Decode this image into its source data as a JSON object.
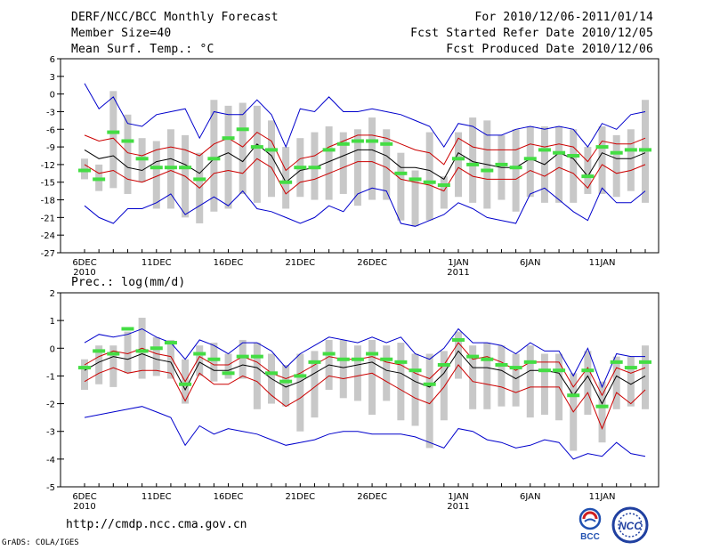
{
  "header": {
    "title": "DERF/NCC/BCC Monthly Forecast",
    "member_size": "Member Size=40",
    "variable": "Mean Surf. Temp.: °C",
    "period": "For 2010/12/06-2011/01/14",
    "refer_date": "Fcst Started Refer Date 2010/12/05",
    "produced_date": "Fcst Produced Date 2010/12/06"
  },
  "footer": {
    "url": "http://cmdp.ncc.cma.gov.cn",
    "grads": "GrADS: COLA/IGES",
    "logo_bcc": "BCC",
    "logo_ncc": "NCC"
  },
  "colors": {
    "envelope": "#0000cc",
    "spread": "#cc0000",
    "mean": "#000000",
    "box": "#c8c8c8",
    "marker": "#44dd44"
  },
  "chart_data": [
    {
      "type": "line",
      "title": "Mean Surf. Temp.: °C",
      "ylim": [
        -27,
        6
      ],
      "yticks": [
        6,
        3,
        0,
        -3,
        -6,
        -9,
        -12,
        -15,
        -18,
        -21,
        -24,
        -27
      ],
      "x_count": 40,
      "xticks": [
        {
          "i": 0,
          "label": "6DEC",
          "sub": "2010"
        },
        {
          "i": 5,
          "label": "11DEC"
        },
        {
          "i": 10,
          "label": "16DEC"
        },
        {
          "i": 15,
          "label": "21DEC"
        },
        {
          "i": 20,
          "label": "26DEC"
        },
        {
          "i": 26,
          "label": "1JAN",
          "sub": "2011"
        },
        {
          "i": 31,
          "label": "6JAN"
        },
        {
          "i": 36,
          "label": "11JAN"
        }
      ],
      "max": [
        1.8,
        -2.5,
        -0.5,
        -5,
        -5.5,
        -3.5,
        -3,
        -2.5,
        -7.5,
        -3,
        -3.5,
        -3.5,
        -1,
        -3.5,
        -9,
        -2.5,
        -3,
        -0.5,
        -3,
        -3,
        -2.5,
        -3,
        -3.5,
        -4.5,
        -5.5,
        -9,
        -5,
        -5.5,
        -7,
        -7,
        -6,
        -5.5,
        -6,
        -5.5,
        -6,
        -9,
        -5,
        -6,
        -3.5,
        -3
      ],
      "upper": [
        -7,
        -8,
        -7.5,
        -10,
        -10.5,
        -9.5,
        -9,
        -9.5,
        -10.5,
        -8.5,
        -7.5,
        -9,
        -6.5,
        -8,
        -13,
        -11,
        -10.5,
        -9,
        -8,
        -7,
        -7,
        -7.5,
        -8.5,
        -9.5,
        -10,
        -12,
        -7.5,
        -9,
        -9.5,
        -9.5,
        -9.5,
        -8.5,
        -9,
        -8.5,
        -9,
        -11.5,
        -8,
        -8.5,
        -8.5,
        -7.5
      ],
      "mean": [
        -9.5,
        -11,
        -10.5,
        -12.5,
        -13,
        -11.5,
        -11,
        -12,
        -13.5,
        -11,
        -10,
        -11.5,
        -8.5,
        -10.5,
        -15,
        -13,
        -12.5,
        -11.5,
        -10.5,
        -9.5,
        -9.5,
        -10.5,
        -12.5,
        -12.5,
        -13,
        -14.5,
        -10,
        -11.5,
        -12,
        -12.5,
        -12.5,
        -11,
        -12,
        -10,
        -11,
        -14,
        -10,
        -11,
        -11,
        -10
      ],
      "lower": [
        -12,
        -13.5,
        -13,
        -14.5,
        -15,
        -14,
        -13,
        -14,
        -16,
        -13.5,
        -13,
        -13.5,
        -11,
        -12.5,
        -17,
        -15,
        -14.5,
        -13.5,
        -12.5,
        -11.5,
        -11.5,
        -12.5,
        -14.5,
        -15,
        -15.5,
        -16.5,
        -12.5,
        -14,
        -14.5,
        -14.5,
        -14.5,
        -13,
        -14,
        -12.5,
        -13.5,
        -16,
        -12,
        -13.5,
        -13,
        -12
      ],
      "min": [
        -19,
        -21,
        -22,
        -19.5,
        -19.5,
        -18.5,
        -17,
        -20.5,
        -19,
        -17.5,
        -19,
        -16.5,
        -19.5,
        -20,
        -21,
        -22,
        -21,
        -19,
        -20,
        -17,
        -16,
        -16.5,
        -22,
        -22.5,
        -21.5,
        -20.5,
        -18.5,
        -19.5,
        -21,
        -21.5,
        -22,
        -17,
        -16,
        -18,
        -20,
        -21.5,
        -16,
        -18.5,
        -18.5,
        -16.5
      ],
      "box_top": [
        -11,
        -12,
        0.5,
        -3.5,
        -7.5,
        -8,
        -6,
        -7,
        -10,
        -1,
        -2,
        -1.5,
        -2,
        -4.5,
        -9,
        -7.5,
        -6.5,
        -5.5,
        -6.5,
        -6,
        -4,
        -6,
        -10,
        -13,
        -6.5,
        -14,
        -6.5,
        -4,
        -4.5,
        -7,
        -6,
        -5.5,
        -5.5,
        -5.5,
        -6,
        -9,
        -5.5,
        -7,
        -6,
        -1
      ],
      "box_bot": [
        -14.5,
        -16.5,
        -16,
        -17,
        -15,
        -19.5,
        -19.5,
        -21,
        -22,
        -20,
        -19.5,
        -17,
        -18.5,
        -17.5,
        -19.5,
        -17.5,
        -18,
        -18,
        -17,
        -19,
        -18,
        -18,
        -21.5,
        -22.5,
        -21.5,
        -19.5,
        -17.5,
        -18.5,
        -19.5,
        -18,
        -20,
        -17.5,
        -18.5,
        -18.5,
        -18.5,
        -17,
        -17,
        -17.5,
        -16.5,
        -18.5
      ],
      "marker": [
        -13,
        -14.5,
        -6.5,
        -8,
        -11,
        -12.5,
        -12.5,
        -12.5,
        -14.5,
        -11,
        -7.5,
        -6,
        -9,
        -9.5,
        -15,
        -12.5,
        -12.5,
        -9.5,
        -8.5,
        -8,
        -8,
        -8.5,
        -13.5,
        -14.5,
        -15,
        -15.5,
        -11,
        -12,
        -13,
        -12,
        -12.5,
        -11,
        -9.5,
        -10,
        -10.5,
        -14,
        -9,
        -10,
        -9.5,
        -9.5
      ]
    },
    {
      "type": "line",
      "title": "Prec.: log(mm/d)",
      "ylim": [
        -5,
        2
      ],
      "yticks": [
        2,
        1,
        0,
        -1,
        -2,
        -3,
        -4,
        -5
      ],
      "x_count": 40,
      "xticks": [
        {
          "i": 0,
          "label": "6DEC",
          "sub": "2010"
        },
        {
          "i": 5,
          "label": "11DEC"
        },
        {
          "i": 10,
          "label": "16DEC"
        },
        {
          "i": 15,
          "label": "21DEC"
        },
        {
          "i": 20,
          "label": "26DEC"
        },
        {
          "i": 26,
          "label": "1JAN",
          "sub": "2011"
        },
        {
          "i": 31,
          "label": "6JAN"
        },
        {
          "i": 36,
          "label": "11JAN"
        }
      ],
      "max": [
        0.2,
        0.5,
        0.4,
        0.5,
        0.7,
        0.4,
        0.2,
        -0.4,
        0.3,
        0.1,
        -0.2,
        0.2,
        0.2,
        -0.1,
        -0.7,
        -0.2,
        0.1,
        0.4,
        0.3,
        0.2,
        0.4,
        0.2,
        0.4,
        -0.2,
        -0.4,
        0,
        0.7,
        0.2,
        0.2,
        0.1,
        -0.2,
        0.2,
        -0.1,
        -0.1,
        -1,
        0,
        -1.4,
        -0.2,
        -0.3,
        -0.3
      ],
      "upper": [
        -0.6,
        -0.3,
        -0.1,
        -0.2,
        0,
        -0.2,
        -0.3,
        -1.2,
        -0.3,
        -0.6,
        -0.6,
        -0.3,
        -0.5,
        -0.9,
        -1.1,
        -0.9,
        -0.6,
        -0.3,
        -0.4,
        -0.4,
        -0.3,
        -0.5,
        -0.6,
        -0.9,
        -1.1,
        -0.6,
        0.2,
        -0.4,
        -0.3,
        -0.5,
        -0.8,
        -0.5,
        -0.5,
        -0.5,
        -1.4,
        -0.7,
        -1.7,
        -0.7,
        -0.9,
        -0.7
      ],
      "mean": [
        -0.8,
        -0.5,
        -0.3,
        -0.4,
        -0.2,
        -0.4,
        -0.5,
        -1.5,
        -0.5,
        -0.8,
        -0.8,
        -0.6,
        -0.7,
        -1.1,
        -1.4,
        -1.2,
        -0.9,
        -0.6,
        -0.7,
        -0.6,
        -0.5,
        -0.8,
        -0.9,
        -1.2,
        -1.4,
        -0.9,
        -0.1,
        -0.7,
        -0.7,
        -0.8,
        -1.1,
        -0.8,
        -0.8,
        -0.9,
        -1.7,
        -1.0,
        -2.0,
        -1.0,
        -1.3,
        -1.0
      ],
      "lower": [
        -1.2,
        -0.9,
        -0.7,
        -0.9,
        -0.8,
        -0.8,
        -0.9,
        -1.9,
        -0.9,
        -1.3,
        -1.3,
        -1.0,
        -1.2,
        -1.7,
        -2.1,
        -1.8,
        -1.4,
        -1.0,
        -1.1,
        -1.0,
        -0.9,
        -1.2,
        -1.5,
        -1.8,
        -2.0,
        -1.4,
        -0.6,
        -1.2,
        -1.3,
        -1.4,
        -1.6,
        -1.4,
        -1.4,
        -1.4,
        -2.3,
        -1.6,
        -2.9,
        -1.6,
        -2.0,
        -1.5
      ],
      "min": [
        -2.5,
        -2.4,
        -2.3,
        -2.2,
        -2.1,
        -2.3,
        -2.5,
        -3.5,
        -2.8,
        -3.1,
        -2.9,
        -3.0,
        -3.1,
        -3.3,
        -3.5,
        -3.4,
        -3.3,
        -3.1,
        -3.0,
        -3.0,
        -3.1,
        -3.1,
        -3.1,
        -3.2,
        -3.4,
        -3.6,
        -2.9,
        -3.0,
        -3.3,
        -3.4,
        -3.6,
        -3.5,
        -3.3,
        -3.4,
        -4.0,
        -3.8,
        -3.9,
        -3.4,
        -3.8,
        -3.9
      ],
      "box_top": [
        -0.4,
        0.1,
        0.1,
        0.6,
        1.1,
        0.4,
        0.3,
        -0.4,
        0.1,
        0.2,
        -0.2,
        0.3,
        0.2,
        -0.2,
        -0.6,
        -0.2,
        -0.1,
        0.3,
        0.3,
        0.1,
        0.3,
        0.1,
        0.2,
        -0.2,
        -0.2,
        -0.1,
        0.6,
        0.1,
        0.2,
        0.1,
        -0.2,
        0.1,
        -0.2,
        -0.2,
        -0.9,
        -0.1,
        -1.2,
        -0.3,
        -0.3,
        0.1
      ],
      "box_bot": [
        -1.5,
        -1.3,
        -1.4,
        -0.9,
        -1.1,
        -1.0,
        -1.1,
        -2.0,
        -1.0,
        -1.2,
        -1.1,
        -1.1,
        -2.2,
        -2.0,
        -2.1,
        -3.0,
        -2.5,
        -1.5,
        -1.8,
        -1.9,
        -2.4,
        -1.9,
        -2.6,
        -2.8,
        -3.6,
        -2.6,
        -1.1,
        -2.2,
        -2.2,
        -2.1,
        -2.1,
        -2.5,
        -2.4,
        -2.6,
        -3.7,
        -2.4,
        -3.4,
        -2.2,
        -2.1,
        -2.2
      ],
      "marker": [
        -0.7,
        -0.1,
        -0.2,
        0.7,
        -0.1,
        0,
        0.2,
        -1.3,
        -0.2,
        -0.4,
        -0.9,
        -0.3,
        -0.3,
        -0.9,
        -1.2,
        -1.0,
        -0.5,
        -0.2,
        -0.4,
        -0.4,
        -0.2,
        -0.4,
        -0.5,
        -0.8,
        -1.3,
        -0.6,
        0.3,
        -0.3,
        -0.4,
        -0.6,
        -0.7,
        -0.5,
        -0.8,
        -0.8,
        -1.7,
        -0.8,
        -2.1,
        -0.5,
        -0.7,
        -0.5
      ]
    }
  ]
}
